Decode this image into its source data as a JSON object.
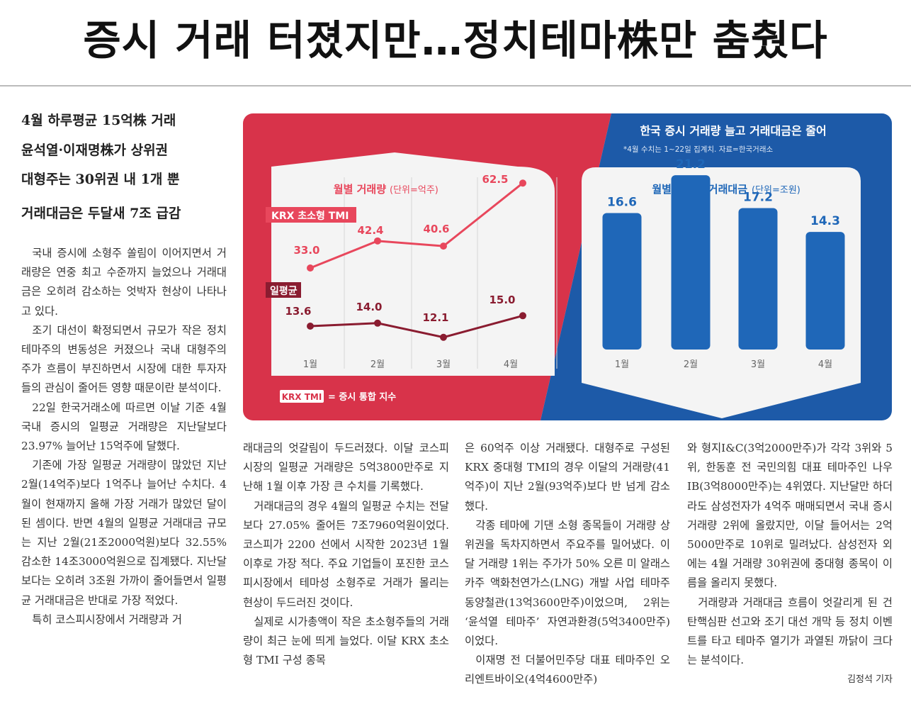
{
  "headline": "증시 거래 터졌지만…정치테마株만 춤췄다",
  "subheads": [
    "4월 하루평균 15억株 거래",
    "윤석열·이재명株가 상위권",
    "대형주는 30위권 내 1개 뿐",
    "거래대금은 두달새 7조 급감"
  ],
  "columns": {
    "col1": [
      {
        "cont": false,
        "text": "국내 증시에 소형주 쏠림이 이어지면서 거래량은 연중 최고 수준까지 늘었으나 거래대금은 오히려 감소하는 엇박자 현상이 나타나고 있다."
      },
      {
        "cont": false,
        "text": "조기 대선이 확정되면서 규모가 작은 정치 테마주의 변동성은 커졌으나 국내 대형주의 주가 흐름이 부진하면서 시장에 대한 투자자들의 관심이 줄어든 영향 때문이란 분석이다."
      },
      {
        "cont": false,
        "text": "22일 한국거래소에 따르면 이날 기준 4월 국내 증시의 일평균 거래량은 지난달보다 23.97% 늘어난 15억주에 달했다."
      },
      {
        "cont": false,
        "text": "기존에 가장 일평균 거래량이 많았던 지난 2월(14억주)보다 1억주나 늘어난 수치다. 4월이 현재까지 올해 가장 거래가 많았던 달이 된 셈이다. 반면 4월의 일평균 거래대금 규모는 지난 2월(21조2000억원)보다 32.55% 감소한 14조3000억원으로 집계됐다. 지난달보다는 오히려 3조원 가까이 줄어들면서 일평균 거래대금은 반대로 가장 적었다."
      },
      {
        "cont": false,
        "text": "특히 코스피시장에서 거래량과 거"
      }
    ],
    "col2": [
      {
        "cont": true,
        "text": "래대금의 엇갈림이 두드러졌다. 이달 코스피시장의 일평균 거래량은 5억3800만주로 지난해 1월 이후 가장 큰 수치를 기록했다."
      },
      {
        "cont": false,
        "text": "거래대금의 경우 4월의 일평균 수치는 전달보다 27.05% 줄어든 7조7960억원이었다. 코스피가 2200 선에서 시작한 2023년 1월 이후로 가장 적다. 주요 기업들이 포진한 코스피시장에서 테마성 소형주로 거래가 몰리는 현상이 두드러진 것이다."
      },
      {
        "cont": false,
        "text": "실제로 시가총액이 작은 초소형주들의 거래량이 최근 눈에 띄게 늘었다. 이달 KRX 초소형 TMI 구성 종목"
      }
    ],
    "col3": [
      {
        "cont": true,
        "text": "은 60억주 이상 거래됐다. 대형주로 구성된 KRX 중대형 TMI의 경우 이달의 거래량(41억주)이 지난 2월(93억주)보다 반 넘게 감소했다."
      },
      {
        "cont": false,
        "text": "각종 테마에 기댄 소형 종목들이 거래량 상위권을 독차지하면서 주요주를 밀어냈다. 이달 거래량 1위는 주가가 50% 오른 미 알래스카주 액화천연가스(LNG) 개발 사업 테마주 동양철관(13억3600만주)이었으며, 2위는 ‘윤석열 테마주’ 자연과환경(5억3400만주)이었다."
      },
      {
        "cont": false,
        "text": "이재명 전 더불어민주당 대표 테마주인 오리엔트바이오(4억4600만주)"
      }
    ],
    "col4": [
      {
        "cont": true,
        "text": "와 형지I&C(3억2000만주)가 각각 3위와 5위, 한동훈 전 국민의힘 대표 테마주인 나우IB(3억8000만주)는 4위였다. 지난달만 하더라도 삼성전자가 4억주 매매되면서 국내 증시 거래량 2위에 올랐지만, 이달 들어서는 2억5000만주로 10위로 밀려났다. 삼성전자 외에는 4월 거래량 30위권에 중대형 종목이 이름을 올리지 못했다."
      },
      {
        "cont": false,
        "text": "거래량과 거래대금 흐름이 엇갈리게 된 건 탄핵심판 선고와 조기 대선 개막 등 정치 이벤트를 타고 테마주 열기가 과열된 까닭이 크다는 분석이다."
      }
    ],
    "byline": "김정석 기자"
  },
  "chart_data": [
    {
      "type": "line",
      "title": "월별 거래량",
      "unit": "(단위=억주)",
      "categories": [
        "1월",
        "2월",
        "3월",
        "4월"
      ],
      "series": [
        {
          "name": "KRX 초소형 TMI",
          "values": [
            33.0,
            42.4,
            40.6,
            62.5
          ]
        },
        {
          "name": "일평균",
          "values": [
            13.6,
            14.0,
            12.1,
            15.0
          ]
        }
      ],
      "note": "= 증시 통합 지수",
      "note_tag": "KRX TMI",
      "colors": {
        "tmi": "#e8475c",
        "avg": "#8a1c30",
        "bg": "#d8334a"
      }
    },
    {
      "type": "bar",
      "header": "한국 증시 거래량 늘고 거래대금은 줄어",
      "source": "*4월 수치는 1~22일 집계치. 자료=한국거래소",
      "title": "월별 일평균 거래대금",
      "unit": "(단위=조원)",
      "categories": [
        "1월",
        "2월",
        "3월",
        "4월"
      ],
      "values": [
        16.6,
        21.2,
        17.2,
        14.3
      ],
      "colors": {
        "bar": "#1f67b8",
        "bg": "#1d5aa8",
        "title": "#1f67b8"
      }
    }
  ]
}
